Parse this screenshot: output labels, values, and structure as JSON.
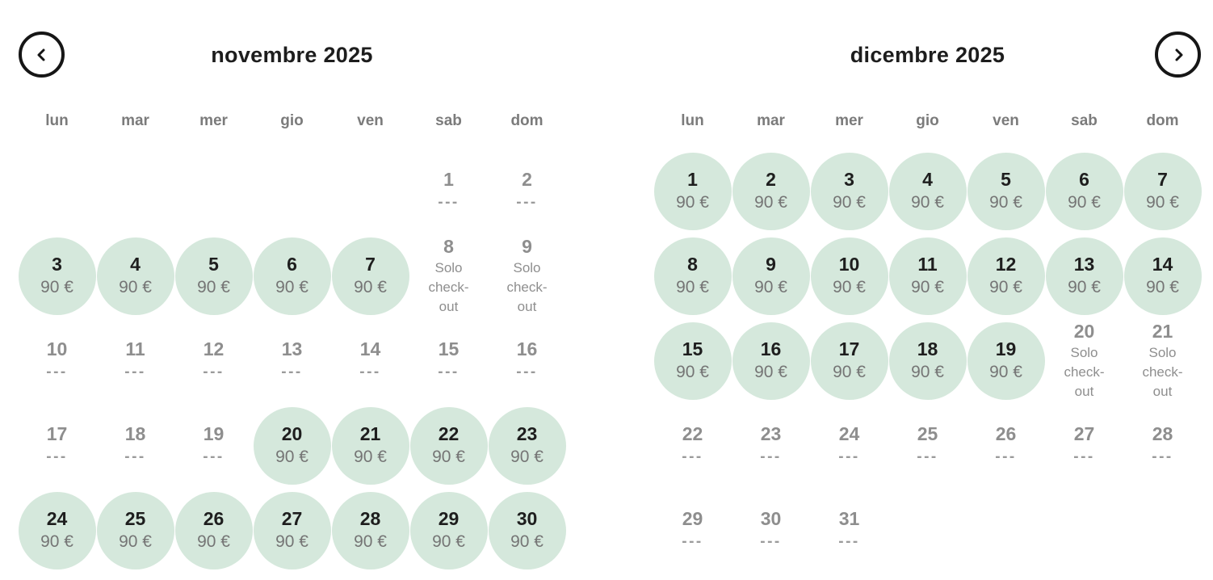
{
  "nav": {
    "prev_icon": "chevron-left",
    "next_icon": "chevron-right"
  },
  "colors": {
    "available_bg": "#d5e8dc",
    "available_day_text": "#1e1e1e",
    "price_text": "#757575",
    "muted_day_text": "#8e8e8e",
    "note_text": "#8e8e8e",
    "dash_text": "#9b9b9b",
    "weekday_text": "#7b7b7b",
    "title_text": "#1d1d1d",
    "nav_border": "#161616"
  },
  "months": [
    {
      "title": "novembre 2025",
      "weekdays": [
        "lun",
        "mar",
        "mer",
        "gio",
        "ven",
        "sab",
        "dom"
      ],
      "days": [
        {
          "type": "empty"
        },
        {
          "type": "empty"
        },
        {
          "type": "empty"
        },
        {
          "type": "empty"
        },
        {
          "type": "empty"
        },
        {
          "day": "1",
          "type": "unavailable",
          "note": "---"
        },
        {
          "day": "2",
          "type": "unavailable",
          "note": "---"
        },
        {
          "day": "3",
          "type": "available",
          "price": "90 €"
        },
        {
          "day": "4",
          "type": "available",
          "price": "90 €"
        },
        {
          "day": "5",
          "type": "available",
          "price": "90 €"
        },
        {
          "day": "6",
          "type": "available",
          "price": "90 €"
        },
        {
          "day": "7",
          "type": "available",
          "price": "90 €"
        },
        {
          "day": "8",
          "type": "checkout",
          "note": "Solo check-out"
        },
        {
          "day": "9",
          "type": "checkout",
          "note": "Solo check-out"
        },
        {
          "day": "10",
          "type": "unavailable",
          "note": "---"
        },
        {
          "day": "11",
          "type": "unavailable",
          "note": "---"
        },
        {
          "day": "12",
          "type": "unavailable",
          "note": "---"
        },
        {
          "day": "13",
          "type": "unavailable",
          "note": "---"
        },
        {
          "day": "14",
          "type": "unavailable",
          "note": "---"
        },
        {
          "day": "15",
          "type": "unavailable",
          "note": "---"
        },
        {
          "day": "16",
          "type": "unavailable",
          "note": "---"
        },
        {
          "day": "17",
          "type": "unavailable",
          "note": "---"
        },
        {
          "day": "18",
          "type": "unavailable",
          "note": "---"
        },
        {
          "day": "19",
          "type": "unavailable",
          "note": "---"
        },
        {
          "day": "20",
          "type": "available",
          "price": "90 €"
        },
        {
          "day": "21",
          "type": "available",
          "price": "90 €"
        },
        {
          "day": "22",
          "type": "available",
          "price": "90 €"
        },
        {
          "day": "23",
          "type": "available",
          "price": "90 €"
        },
        {
          "day": "24",
          "type": "available",
          "price": "90 €"
        },
        {
          "day": "25",
          "type": "available",
          "price": "90 €"
        },
        {
          "day": "26",
          "type": "available",
          "price": "90 €"
        },
        {
          "day": "27",
          "type": "available",
          "price": "90 €"
        },
        {
          "day": "28",
          "type": "available",
          "price": "90 €"
        },
        {
          "day": "29",
          "type": "available",
          "price": "90 €"
        },
        {
          "day": "30",
          "type": "available",
          "price": "90 €"
        }
      ]
    },
    {
      "title": "dicembre 2025",
      "weekdays": [
        "lun",
        "mar",
        "mer",
        "gio",
        "ven",
        "sab",
        "dom"
      ],
      "days": [
        {
          "day": "1",
          "type": "available",
          "price": "90 €"
        },
        {
          "day": "2",
          "type": "available",
          "price": "90 €"
        },
        {
          "day": "3",
          "type": "available",
          "price": "90 €"
        },
        {
          "day": "4",
          "type": "available",
          "price": "90 €"
        },
        {
          "day": "5",
          "type": "available",
          "price": "90 €"
        },
        {
          "day": "6",
          "type": "available",
          "price": "90 €"
        },
        {
          "day": "7",
          "type": "available",
          "price": "90 €"
        },
        {
          "day": "8",
          "type": "available",
          "price": "90 €"
        },
        {
          "day": "9",
          "type": "available",
          "price": "90 €"
        },
        {
          "day": "10",
          "type": "available",
          "price": "90 €"
        },
        {
          "day": "11",
          "type": "available",
          "price": "90 €"
        },
        {
          "day": "12",
          "type": "available",
          "price": "90 €"
        },
        {
          "day": "13",
          "type": "available",
          "price": "90 €"
        },
        {
          "day": "14",
          "type": "available",
          "price": "90 €"
        },
        {
          "day": "15",
          "type": "available",
          "price": "90 €"
        },
        {
          "day": "16",
          "type": "available",
          "price": "90 €"
        },
        {
          "day": "17",
          "type": "available",
          "price": "90 €"
        },
        {
          "day": "18",
          "type": "available",
          "price": "90 €"
        },
        {
          "day": "19",
          "type": "available",
          "price": "90 €"
        },
        {
          "day": "20",
          "type": "checkout",
          "note": "Solo check-out"
        },
        {
          "day": "21",
          "type": "checkout",
          "note": "Solo check-out"
        },
        {
          "day": "22",
          "type": "unavailable",
          "note": "---"
        },
        {
          "day": "23",
          "type": "unavailable",
          "note": "---"
        },
        {
          "day": "24",
          "type": "unavailable",
          "note": "---"
        },
        {
          "day": "25",
          "type": "unavailable",
          "note": "---"
        },
        {
          "day": "26",
          "type": "unavailable",
          "note": "---"
        },
        {
          "day": "27",
          "type": "unavailable",
          "note": "---"
        },
        {
          "day": "28",
          "type": "unavailable",
          "note": "---"
        },
        {
          "day": "29",
          "type": "unavailable",
          "note": "---"
        },
        {
          "day": "30",
          "type": "unavailable",
          "note": "---"
        },
        {
          "day": "31",
          "type": "unavailable",
          "note": "---"
        },
        {
          "type": "empty"
        },
        {
          "type": "empty"
        },
        {
          "type": "empty"
        },
        {
          "type": "empty"
        }
      ]
    }
  ]
}
